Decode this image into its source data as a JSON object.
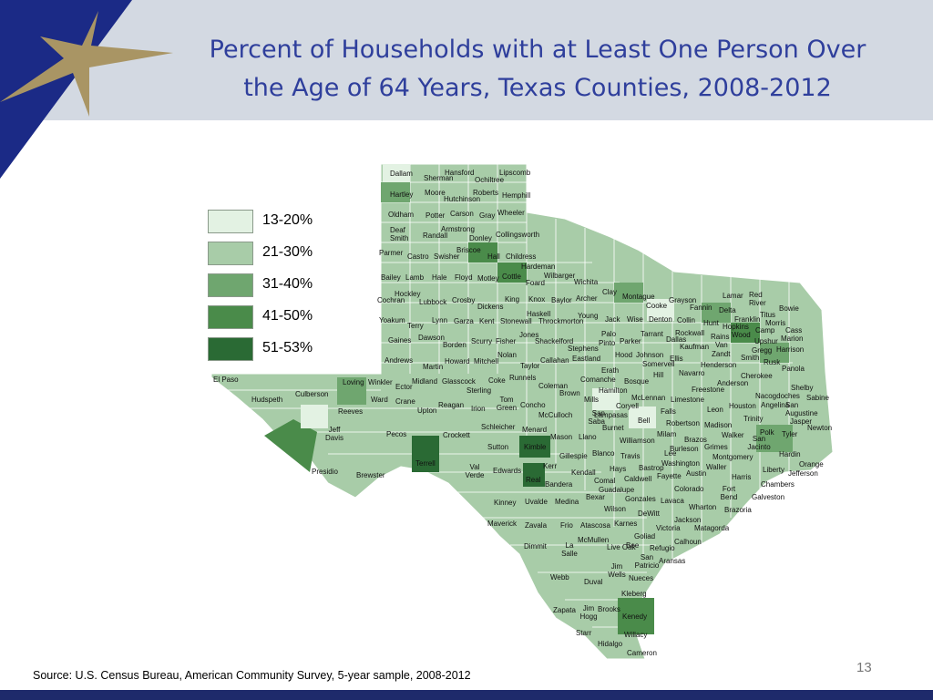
{
  "slide": {
    "title_line1": "Percent of Households with at Least One Person Over",
    "title_line2": "the Age of 64 Years, Texas Counties, 2008-2012",
    "source": "Source: U.S. Census Bureau, American Community Survey, 5-year sample, 2008-2012",
    "page_number": "13"
  },
  "colors": {
    "header_band": "#d3d9e2",
    "title": "#2f3f9c",
    "corner_blue": "#1b2a86",
    "star_gold": "#a99564",
    "footer_band": "#1e2a6b"
  },
  "legend": [
    {
      "label": "13-20%",
      "color": "#e3f2e3"
    },
    {
      "label": "21-30%",
      "color": "#a8cca8"
    },
    {
      "label": "31-40%",
      "color": "#6fa66f"
    },
    {
      "label": "41-50%",
      "color": "#4a8b4a"
    },
    {
      "label": "51-53%",
      "color": "#2a6a34"
    }
  ],
  "counties": [
    "Dallam",
    "Sherman",
    "Hansford",
    "Ochiltree",
    "Lipscomb",
    "Hartley",
    "Moore",
    "Hutchinson",
    "Roberts",
    "Hemphill",
    "Oldham",
    "Potter",
    "Carson",
    "Gray",
    "Wheeler",
    "Deaf Smith",
    "Randall",
    "Armstrong",
    "Donley",
    "Collingsworth",
    "Parmer",
    "Castro",
    "Swisher",
    "Briscoe",
    "Hall",
    "Childress",
    "Hardeman",
    "Bailey",
    "Lamb",
    "Hale",
    "Floyd",
    "Motley",
    "Cottle",
    "Foard",
    "Wilbarger",
    "Wichita",
    "Hockley",
    "Cochran",
    "Lubbock",
    "Crosby",
    "Dickens",
    "King",
    "Knox",
    "Baylor",
    "Archer",
    "Clay",
    "Montague",
    "Grayson",
    "Cooke",
    "Fannin",
    "Lamar",
    "Red River",
    "Delta",
    "Bowie",
    "Titus",
    "Franklin",
    "Morris",
    "Cass",
    "Haskell",
    "Young",
    "Jack",
    "Wise",
    "Denton",
    "Collin",
    "Hunt",
    "Hopkins",
    "Camp",
    "Yoakum",
    "Terry",
    "Lynn",
    "Garza",
    "Kent",
    "Stonewall",
    "Throckmorton",
    "Palo",
    "Tarrant",
    "Rockwall",
    "Rains",
    "Wood",
    "Upshur",
    "Marion",
    "Gaines",
    "Dawson",
    "Borden",
    "Scurry",
    "Fisher",
    "Jones",
    "Shackelford",
    "Stephens",
    "Pinto",
    "Parker",
    "Dallas",
    "Kaufman",
    "Van",
    "Zandt",
    "Gregg",
    "Harrison",
    "Andrews",
    "Martin",
    "Howard",
    "Mitchell",
    "Nolan",
    "Taylor",
    "Callahan",
    "Eastland",
    "Erath",
    "Hood",
    "Johnson",
    "Somervell",
    "Ellis",
    "Henderson",
    "Smith",
    "Rusk",
    "Panola",
    "El Paso",
    "Loving",
    "Winkler",
    "Ector",
    "Midland",
    "Glasscock",
    "Sterling",
    "Coke",
    "Runnels",
    "Coleman",
    "Brown",
    "Comanche",
    "Bosque",
    "Hamilton",
    "Hill",
    "Navarro",
    "Freestone",
    "Anderson",
    "Cherokee",
    "Shelby",
    "Nacogdoches",
    "Sabine",
    "San Augustine",
    "Culberson",
    "Hudspeth",
    "Ward",
    "Crane",
    "Reagan",
    "Tom Green",
    "Upton",
    "Irion",
    "Concho",
    "McCulloch",
    "Mills",
    "McLennan",
    "Coryell",
    "Limestone",
    "Houston",
    "Angelina",
    "Reeves",
    "San Saba",
    "Lampasas",
    "Bell",
    "Falls",
    "Leon",
    "Trinity",
    "Jasper",
    "Newton",
    "Jeff Davis",
    "Pecos",
    "Crockett",
    "Schleicher",
    "Menard",
    "Mason",
    "Llano",
    "Burnet",
    "Williamson",
    "Robertson",
    "Madison",
    "Walker",
    "San Jacinto",
    "Polk",
    "Tyler",
    "Sutton",
    "Kimble",
    "Gillespie",
    "Blanco",
    "Travis",
    "Lee",
    "Milam",
    "Brazos",
    "Burleson",
    "Grimes",
    "Montgomery",
    "Hardin",
    "Orange",
    "Presidio",
    "Brewster",
    "Terrell",
    "Val Verde",
    "Edwards",
    "Kerr",
    "Kendall",
    "Comal",
    "Hays",
    "Bastrop",
    "Washington",
    "Austin",
    "Waller",
    "Liberty",
    "Jefferson",
    "Real",
    "Bandera",
    "Caldwell",
    "Fayette",
    "Harris",
    "Chambers",
    "Guadalupe",
    "Colorado",
    "Fort Bend",
    "Galveston",
    "Kinney",
    "Uvalde",
    "Medina",
    "Bexar",
    "Gonzales",
    "Lavaca",
    "Wharton",
    "Brazoria",
    "Wilson",
    "DeWitt",
    "Jackson",
    "Maverick",
    "Zavala",
    "Frio",
    "Atascosa",
    "Karnes",
    "Victoria",
    "Matagorda",
    "Goliad",
    "Calhoun",
    "McMullen",
    "Live Oak",
    "Bee",
    "Refugio",
    "Dimmit",
    "La Salle",
    "San Patricio",
    "Aransas",
    "Jim Wells",
    "Nueces",
    "Webb",
    "Duval",
    "Kleberg",
    "Zapata",
    "Jim Hogg",
    "Brooks",
    "Kenedy",
    "Starr",
    "Willacy",
    "Hidalgo",
    "Cameron"
  ]
}
